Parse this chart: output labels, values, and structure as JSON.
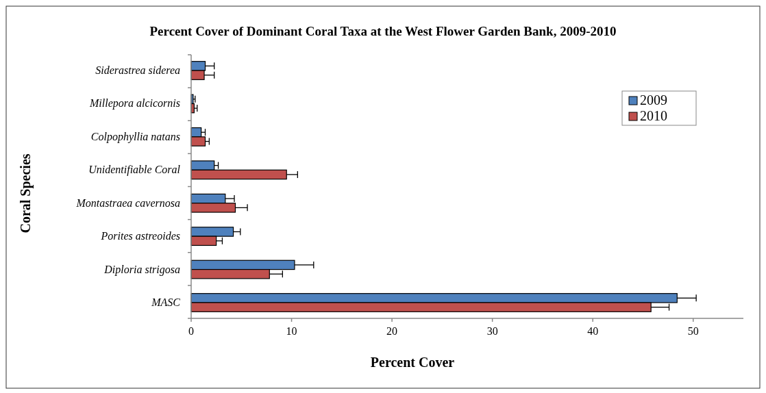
{
  "chart_data": {
    "type": "bar",
    "orientation": "horizontal",
    "title": "Percent Cover of Dominant Coral Taxa at the West Flower Garden Bank, 2009-2010",
    "xlabel": "Percent Cover",
    "ylabel": "Coral Species",
    "categories": [
      "Siderastrea siderea",
      "Millepora alcicornis",
      "Colpophyllia natans",
      "Unidentifiable Coral",
      "Montastraea cavernosa",
      "Porites astreoides",
      "Diploria strigosa",
      "MASC"
    ],
    "series": [
      {
        "name": "2009",
        "color": "#4f81bd",
        "values": [
          1.4,
          0.2,
          1.0,
          2.3,
          3.4,
          4.2,
          10.3,
          48.4
        ],
        "errors": [
          0.9,
          0.2,
          0.4,
          0.4,
          0.9,
          0.7,
          1.9,
          1.9
        ]
      },
      {
        "name": "2010",
        "color": "#c0504d",
        "values": [
          1.3,
          0.3,
          1.4,
          9.5,
          4.4,
          2.5,
          7.8,
          45.8
        ],
        "errors": [
          1.0,
          0.3,
          0.4,
          1.1,
          1.2,
          0.6,
          1.3,
          1.8
        ]
      }
    ],
    "xlim": [
      0,
      55
    ],
    "xticks": [
      0,
      10,
      20,
      30,
      40,
      50
    ],
    "legend": "top right"
  }
}
